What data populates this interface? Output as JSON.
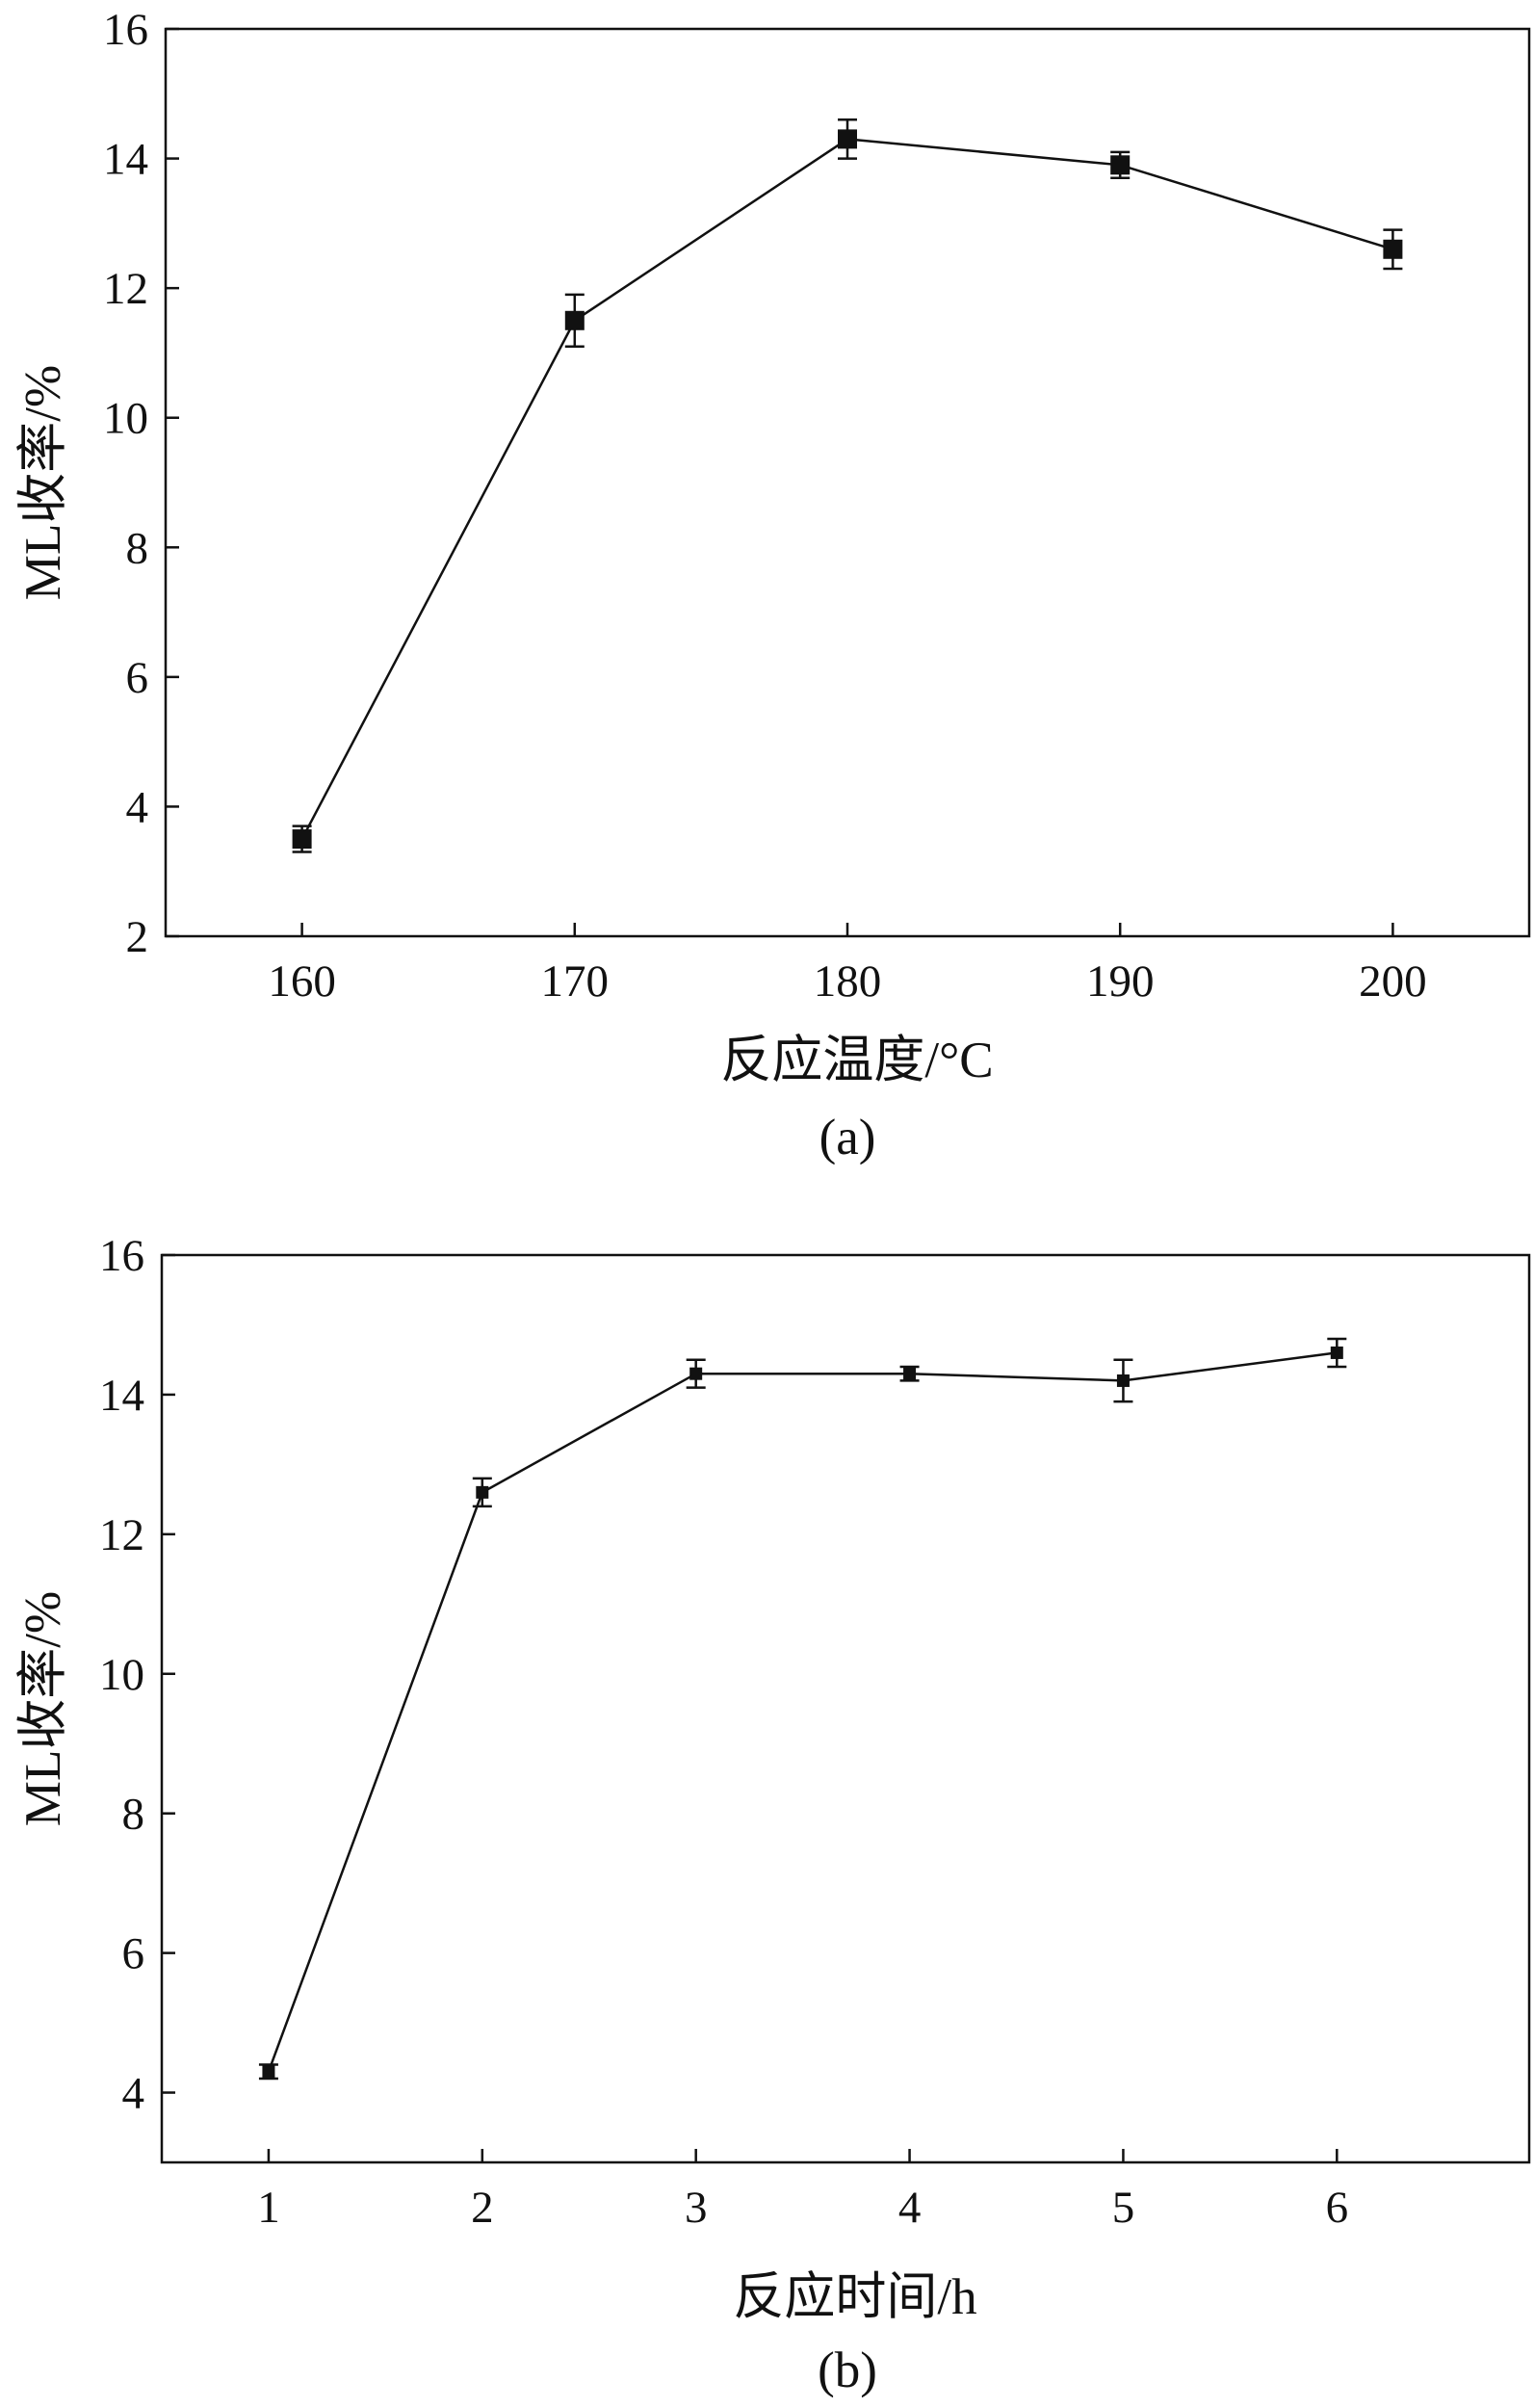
{
  "chart_data": [
    {
      "type": "line",
      "panel_label": "(a)",
      "xlabel": "反应温度/°C",
      "ylabel": "ML收率/%",
      "x": [
        160,
        170,
        180,
        190,
        200
      ],
      "series": [
        {
          "values": [
            3.5,
            11.5,
            14.3,
            13.9,
            12.6
          ],
          "errors": [
            0.2,
            0.4,
            0.3,
            0.2,
            0.3
          ]
        }
      ],
      "xlim": [
        155,
        205
      ],
      "ylim": [
        2,
        16
      ],
      "xticks": [
        160,
        170,
        180,
        190,
        200
      ],
      "yticks": [
        2,
        4,
        6,
        8,
        10,
        12,
        14,
        16
      ],
      "marker": "square",
      "grid": false,
      "color": "#111111"
    },
    {
      "type": "line",
      "panel_label": "(b)",
      "xlabel": "反应时间/h",
      "ylabel": "ML收率/%",
      "x": [
        1,
        2,
        3,
        4,
        5,
        6
      ],
      "series": [
        {
          "values": [
            4.3,
            12.6,
            14.3,
            14.3,
            14.2,
            14.6
          ],
          "errors": [
            0.1,
            0.2,
            0.2,
            0.1,
            0.3,
            0.2
          ]
        }
      ],
      "xlim": [
        0.5,
        6.9
      ],
      "ylim": [
        3,
        16
      ],
      "xticks": [
        1,
        2,
        3,
        4,
        5,
        6
      ],
      "yticks": [
        4,
        6,
        8,
        10,
        12,
        14,
        16
      ],
      "marker": "square",
      "grid": false,
      "color": "#111111"
    }
  ]
}
